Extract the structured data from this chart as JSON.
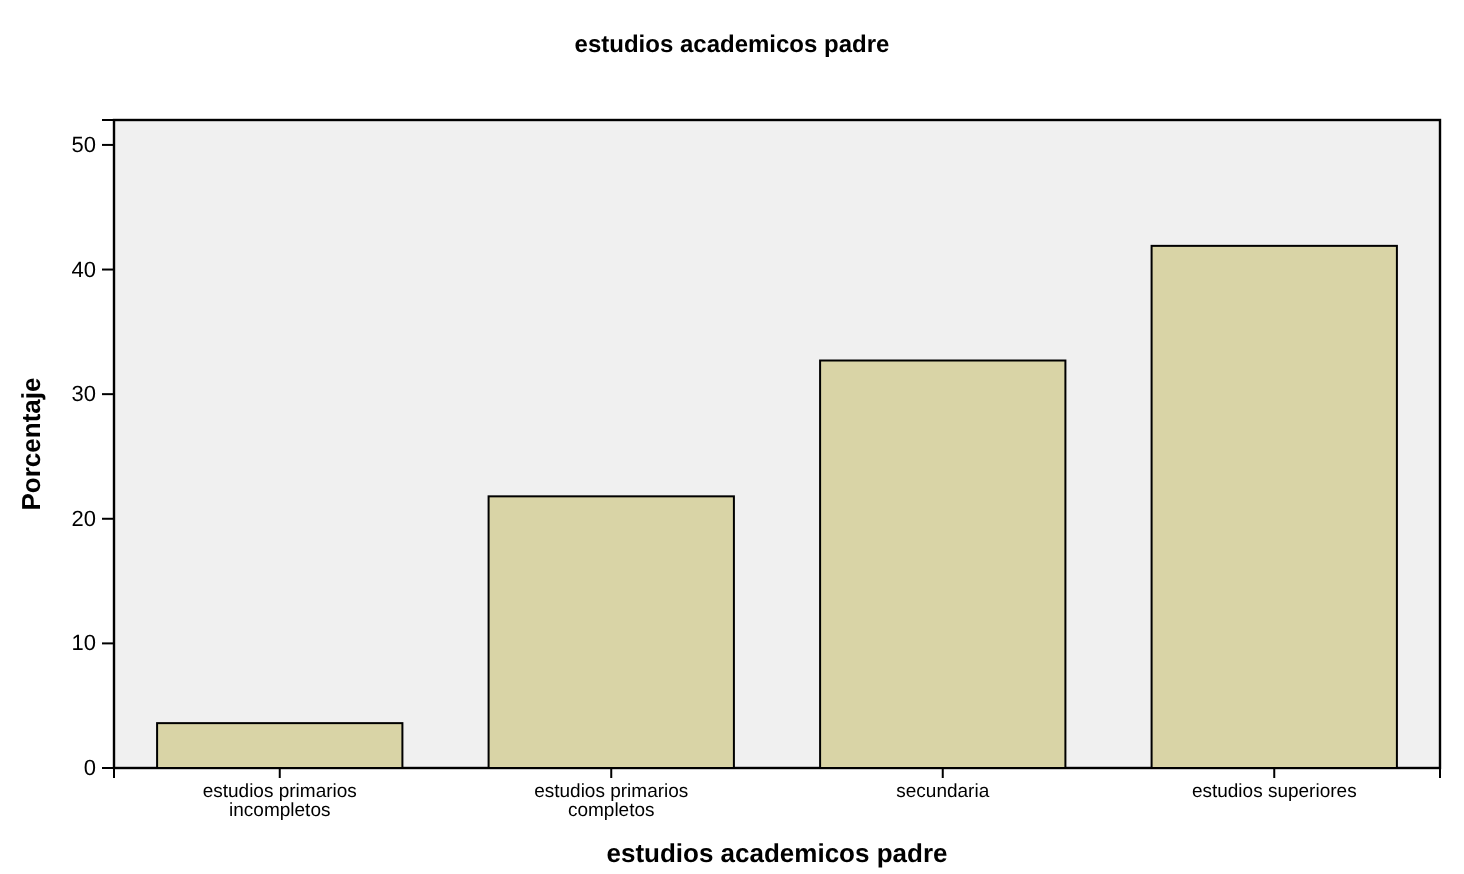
{
  "chart_data": {
    "type": "bar",
    "title": "estudios academicos padre",
    "xlabel": "estudios academicos padre",
    "ylabel": "Porcentaje",
    "categories": [
      "estudios primarios incompletos",
      "estudios primarios completos",
      "secundaria",
      "estudios superiores"
    ],
    "values": [
      3.6,
      21.8,
      32.7,
      41.9
    ],
    "color": "#d9d4a6",
    "ylim": [
      0,
      52
    ],
    "yticks": [
      0,
      10,
      20,
      30,
      40,
      50
    ],
    "grid": false
  }
}
